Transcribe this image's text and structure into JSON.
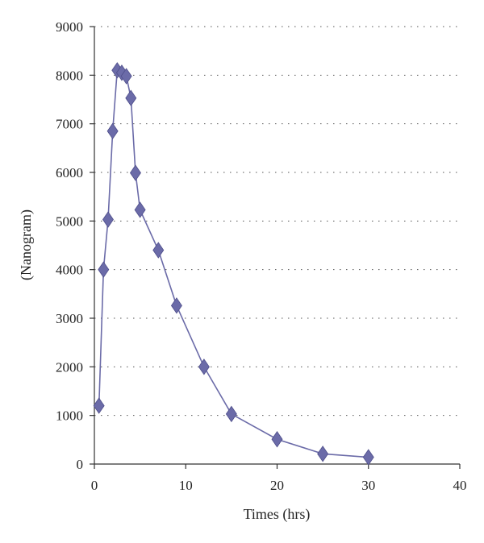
{
  "chart_data": {
    "type": "scatter",
    "title": "",
    "xlabel": "Times (hrs)",
    "ylabel": "(Nanogram)",
    "xlim": [
      0,
      40
    ],
    "ylim": [
      0,
      9000
    ],
    "xticks": [
      0,
      10,
      20,
      30,
      40
    ],
    "yticks": [
      0,
      1000,
      2000,
      3000,
      4000,
      5000,
      6000,
      7000,
      8000,
      9000
    ],
    "grid": "horizontal dotted",
    "legend": "none",
    "series": [
      {
        "marker": "diamond",
        "line": true,
        "color": "#6b6ba8",
        "x": [
          0.5,
          1.0,
          1.5,
          2.0,
          2.5,
          3.0,
          3.5,
          4.0,
          4.5,
          5.0,
          7.0,
          9.0,
          12.0,
          15.0,
          20.0,
          25.0,
          30.0
        ],
        "y": [
          1200,
          4000,
          5030,
          6850,
          8100,
          8050,
          7980,
          7530,
          5990,
          5230,
          4400,
          3260,
          2000,
          1030,
          510,
          210,
          140
        ]
      }
    ]
  }
}
